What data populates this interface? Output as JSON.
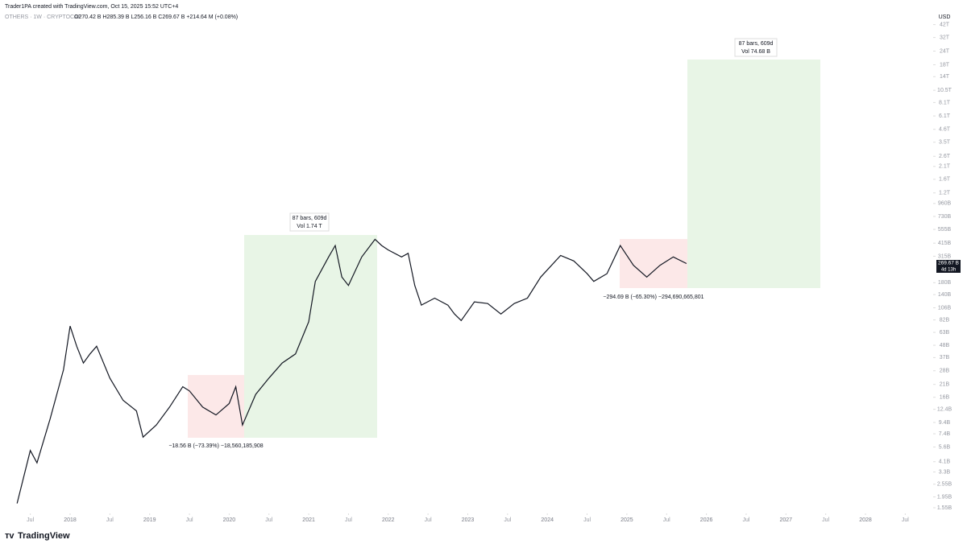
{
  "header": {
    "author": "Trader1PA created with TradingView.com, Oct 15, 2025 15:52 UTC+4",
    "symbol": "OTHERS · 1W · CRYPTOCAP",
    "ohlc": "O270.42 B  H285.39 B  L256.16 B  C269.67 B  +214.64 M (+0.08%)"
  },
  "chart_data": {
    "type": "line",
    "color": "#131722",
    "log_scale": true,
    "currency": "USD",
    "x": [
      "2017-05",
      "2017-07",
      "2017-08",
      "2017-10",
      "2017-12",
      "2018-01",
      "2018-02",
      "2018-03",
      "2018-04",
      "2018-05",
      "2018-07",
      "2018-09",
      "2018-11",
      "2018-12",
      "2019-02",
      "2019-04",
      "2019-06",
      "2019-07",
      "2019-09",
      "2019-11",
      "2020-01",
      "2020-02",
      "2020-03",
      "2020-05",
      "2020-07",
      "2020-09",
      "2020-11",
      "2021-01",
      "2021-02",
      "2021-04",
      "2021-05",
      "2021-06",
      "2021-07",
      "2021-09",
      "2021-11",
      "2021-12",
      "2022-01",
      "2022-03",
      "2022-04",
      "2022-05",
      "2022-06",
      "2022-08",
      "2022-10",
      "2022-11",
      "2022-12",
      "2023-02",
      "2023-04",
      "2023-06",
      "2023-08",
      "2023-10",
      "2023-12",
      "2024-03",
      "2024-05",
      "2024-07",
      "2024-08",
      "2024-10",
      "2024-12",
      "2025-02",
      "2025-04",
      "2025-06",
      "2025-08",
      "2025-10"
    ],
    "series": [
      {
        "name": "OTHERS",
        "values": [
          1.7,
          5.2,
          4.0,
          10.2,
          28.6,
          72,
          47,
          33,
          40,
          47,
          24,
          15,
          12,
          6.9,
          8.9,
          13,
          20,
          18.3,
          13,
          11,
          14,
          20,
          8.9,
          17,
          24,
          33,
          40,
          79,
          185,
          310,
          395,
          203,
          170,
          310,
          450,
          395,
          360,
          310,
          335,
          170,
          112,
          130,
          112,
          93,
          81,
          120,
          116,
          93,
          116,
          130,
          203,
          320,
          285,
          218,
          185,
          218,
          395,
          260,
          203,
          260,
          310,
          269.67
        ]
      }
    ],
    "ylim": [
      1.33,
      50300
    ],
    "yticks": [
      {
        "value": 42000,
        "label": "42T"
      },
      {
        "value": 32000,
        "label": "32T"
      },
      {
        "value": 24000,
        "label": "24T"
      },
      {
        "value": 18000,
        "label": "18T"
      },
      {
        "value": 14000,
        "label": "14T"
      },
      {
        "value": 10500,
        "label": "10.5T"
      },
      {
        "value": 8100,
        "label": "8.1T"
      },
      {
        "value": 6100,
        "label": "6.1T"
      },
      {
        "value": 4600,
        "label": "4.6T"
      },
      {
        "value": 3500,
        "label": "3.5T"
      },
      {
        "value": 2600,
        "label": "2.6T"
      },
      {
        "value": 2100,
        "label": "2.1T"
      },
      {
        "value": 1600,
        "label": "1.6T"
      },
      {
        "value": 1200,
        "label": "1.2T"
      },
      {
        "value": 960,
        "label": "960B"
      },
      {
        "value": 730,
        "label": "730B"
      },
      {
        "value": 555,
        "label": "555B"
      },
      {
        "value": 415,
        "label": "415B"
      },
      {
        "value": 315,
        "label": "315B"
      },
      {
        "value": 180,
        "label": "180B"
      },
      {
        "value": 140,
        "label": "140B"
      },
      {
        "value": 106,
        "label": "106B"
      },
      {
        "value": 82,
        "label": "82B"
      },
      {
        "value": 63,
        "label": "63B"
      },
      {
        "value": 48,
        "label": "48B"
      },
      {
        "value": 37,
        "label": "37B"
      },
      {
        "value": 28,
        "label": "28B"
      },
      {
        "value": 21,
        "label": "21B"
      },
      {
        "value": 16,
        "label": "16B"
      },
      {
        "value": 12.4,
        "label": "12.4B"
      },
      {
        "value": 9.4,
        "label": "9.4B"
      },
      {
        "value": 7.4,
        "label": "7.4B"
      },
      {
        "value": 5.6,
        "label": "5.6B"
      },
      {
        "value": 4.1,
        "label": "4.1B"
      },
      {
        "value": 3.3,
        "label": "3.3B"
      },
      {
        "value": 2.55,
        "label": "2.55B"
      },
      {
        "value": 1.95,
        "label": "1.95B"
      },
      {
        "value": 1.55,
        "label": "1.55B"
      }
    ],
    "xticks": [
      {
        "value": "2017-07",
        "label": "Jul"
      },
      {
        "value": "2018-01",
        "label": "2018"
      },
      {
        "value": "2018-07",
        "label": "Jul"
      },
      {
        "value": "2019-01",
        "label": "2019"
      },
      {
        "value": "2019-07",
        "label": "Jul"
      },
      {
        "value": "2020-01",
        "label": "2020"
      },
      {
        "value": "2020-07",
        "label": "Jul"
      },
      {
        "value": "2021-01",
        "label": "2021"
      },
      {
        "value": "2021-07",
        "label": "Jul"
      },
      {
        "value": "2022-01",
        "label": "2022"
      },
      {
        "value": "2022-07",
        "label": "Jul"
      },
      {
        "value": "2023-01",
        "label": "2023"
      },
      {
        "value": "2023-07",
        "label": "Jul"
      },
      {
        "value": "2024-01",
        "label": "2024"
      },
      {
        "value": "2024-07",
        "label": "Jul"
      },
      {
        "value": "2025-01",
        "label": "2025"
      },
      {
        "value": "2025-07",
        "label": "Jul"
      },
      {
        "value": "2026-01",
        "label": "2026"
      },
      {
        "value": "2026-07",
        "label": "Jul"
      },
      {
        "value": "2027-01",
        "label": "2027"
      },
      {
        "value": "2027-07",
        "label": "Jul"
      },
      {
        "value": "2028-01",
        "label": "2028"
      },
      {
        "value": "2028-07",
        "label": "Jul"
      }
    ],
    "price_tag": {
      "value": "269.67 B",
      "countdown": "4d 13h"
    },
    "annotations": [
      {
        "bars": "87 bars, 609d",
        "volume": "Vol 1.74 T",
        "drop": "−18.56 B (−73.39%) −18,560,185,908"
      },
      {
        "bars": "87 bars, 609d",
        "volume": "Vol 74.68 B",
        "drop": "−294.69 B (−65.30%) −294,690,665,801"
      }
    ]
  },
  "logo": "TradingView"
}
